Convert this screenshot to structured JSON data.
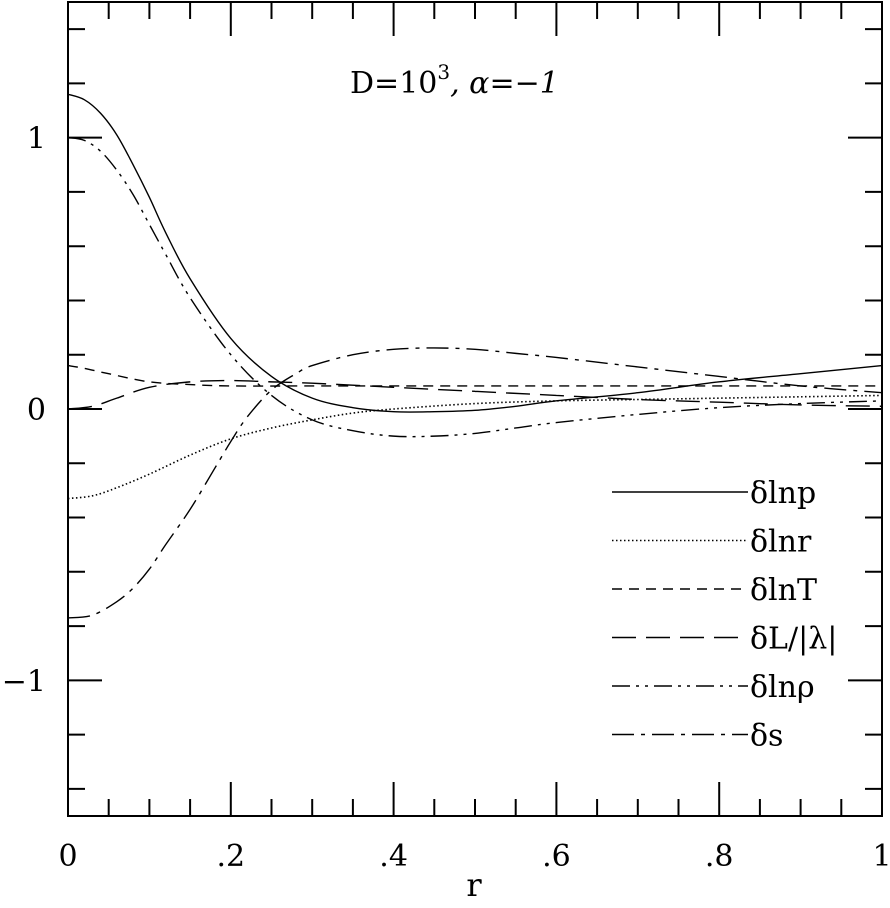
{
  "chart_data": {
    "type": "line",
    "annotation": {
      "text_main": "D=10",
      "superscript": "3",
      "text_alpha": ",  α=−1"
    },
    "xlabel": "r",
    "ylabel": "",
    "xlim": [
      0,
      1
    ],
    "ylim": [
      -1.5,
      1.5
    ],
    "x_ticks": [
      {
        "value": 0,
        "label": "0"
      },
      {
        "value": 0.2,
        "label": ".2"
      },
      {
        "value": 0.4,
        "label": ".4"
      },
      {
        "value": 0.6,
        "label": ".6"
      },
      {
        "value": 0.8,
        "label": ".8"
      },
      {
        "value": 1,
        "label": "1"
      }
    ],
    "y_ticks": [
      {
        "value": 1,
        "label": "1"
      },
      {
        "value": 0,
        "label": "0"
      },
      {
        "value": -1,
        "label": "−1"
      }
    ],
    "x_minor_step": 0.05,
    "y_minor_step": 0.2,
    "grid": false,
    "legend_placement": "lower-right",
    "series": [
      {
        "name": "δlnp",
        "style": "solid",
        "x": [
          0,
          0.02,
          0.04,
          0.06,
          0.08,
          0.1,
          0.12,
          0.15,
          0.2,
          0.25,
          0.3,
          0.35,
          0.4,
          0.45,
          0.5,
          0.55,
          0.6,
          0.7,
          0.8,
          0.9,
          1.0
        ],
        "y": [
          1.16,
          1.14,
          1.09,
          1.01,
          0.9,
          0.78,
          0.65,
          0.48,
          0.26,
          0.12,
          0.04,
          0.005,
          -0.01,
          -0.01,
          -0.005,
          0.01,
          0.03,
          0.06,
          0.1,
          0.13,
          0.16
        ]
      },
      {
        "name": "δlnr",
        "style": "dotted",
        "x": [
          0,
          0.03,
          0.06,
          0.1,
          0.15,
          0.2,
          0.25,
          0.3,
          0.35,
          0.4,
          0.5,
          0.6,
          0.7,
          0.8,
          0.9,
          1.0
        ],
        "y": [
          -0.33,
          -0.32,
          -0.29,
          -0.24,
          -0.17,
          -0.11,
          -0.07,
          -0.04,
          -0.015,
          0.0,
          0.02,
          0.03,
          0.035,
          0.04,
          0.045,
          0.05
        ]
      },
      {
        "name": "δlnT",
        "style": "dashed",
        "x": [
          0,
          0.02,
          0.05,
          0.1,
          0.15,
          0.2,
          0.3,
          0.4,
          0.5,
          0.6,
          0.7,
          0.8,
          0.9,
          1.0
        ],
        "y": [
          0.16,
          0.15,
          0.13,
          0.1,
          0.09,
          0.085,
          0.085,
          0.085,
          0.085,
          0.085,
          0.085,
          0.085,
          0.085,
          0.085
        ]
      },
      {
        "name": "δL/|λ|",
        "style": "longdash",
        "x": [
          0,
          0.03,
          0.06,
          0.1,
          0.15,
          0.2,
          0.25,
          0.3,
          0.4,
          0.5,
          0.6,
          0.7,
          0.8,
          0.9,
          1.0
        ],
        "y": [
          0.0,
          0.01,
          0.04,
          0.08,
          0.1,
          0.105,
          0.1,
          0.095,
          0.08,
          0.065,
          0.05,
          0.035,
          0.025,
          0.015,
          0.01
        ]
      },
      {
        "name": "δlnρ",
        "style": "dashdotdot",
        "x": [
          0,
          0.02,
          0.04,
          0.06,
          0.08,
          0.1,
          0.12,
          0.15,
          0.2,
          0.25,
          0.3,
          0.35,
          0.4,
          0.45,
          0.5,
          0.55,
          0.6,
          0.7,
          0.8,
          0.9,
          1.0
        ],
        "y": [
          1.0,
          0.99,
          0.95,
          0.88,
          0.79,
          0.68,
          0.57,
          0.41,
          0.2,
          0.05,
          -0.04,
          -0.08,
          -0.1,
          -0.1,
          -0.09,
          -0.07,
          -0.05,
          -0.02,
          0.005,
          0.02,
          0.03
        ]
      },
      {
        "name": "δs",
        "style": "dashdot",
        "x": [
          0,
          0.03,
          0.06,
          0.08,
          0.1,
          0.12,
          0.15,
          0.18,
          0.2,
          0.22,
          0.25,
          0.28,
          0.3,
          0.35,
          0.4,
          0.45,
          0.5,
          0.55,
          0.6,
          0.7,
          0.8,
          0.9,
          1.0
        ],
        "y": [
          -0.77,
          -0.76,
          -0.71,
          -0.66,
          -0.59,
          -0.5,
          -0.37,
          -0.22,
          -0.12,
          -0.03,
          0.07,
          0.13,
          0.16,
          0.2,
          0.22,
          0.225,
          0.22,
          0.205,
          0.19,
          0.155,
          0.12,
          0.085,
          0.06
        ]
      }
    ]
  }
}
